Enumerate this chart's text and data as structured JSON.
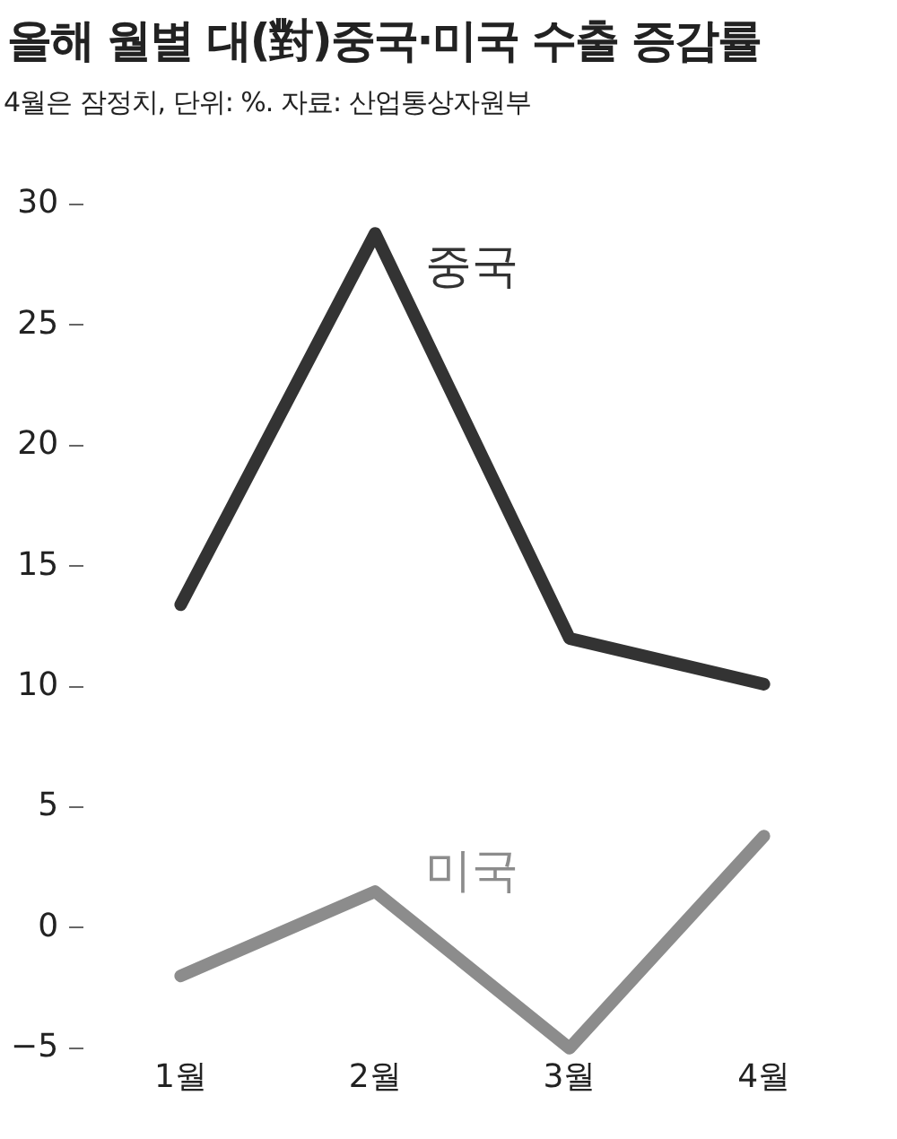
{
  "chart_data": {
    "type": "line",
    "title": "올해 월별 대(對)중국·미국 수출 증감률",
    "subtitle": "4월은 잠정치, 단위: %. 자료: 산업통상자원부",
    "categories": [
      "1월",
      "2월",
      "3월",
      "4월"
    ],
    "series": [
      {
        "name": "중국",
        "color": "#333333",
        "values": [
          13.4,
          28.8,
          12.0,
          10.1
        ]
      },
      {
        "name": "미국",
        "color": "#8c8c8c",
        "values": [
          -2.0,
          1.5,
          -5.0,
          3.8
        ]
      }
    ],
    "ylim": [
      -5,
      30
    ],
    "yticks": [
      -5,
      0,
      5,
      10,
      15,
      20,
      25,
      30
    ],
    "grid": false,
    "legend": false,
    "marker": "none",
    "line_style": "solid"
  }
}
